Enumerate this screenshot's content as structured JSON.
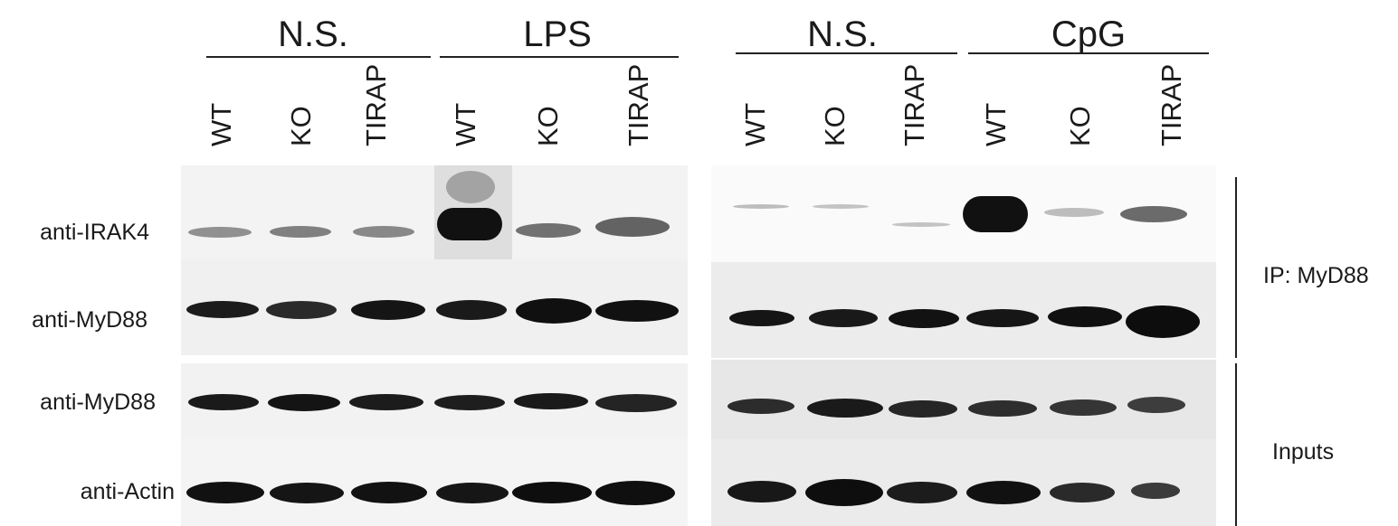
{
  "blot": {
    "groups": [
      "N.S.",
      "LPS",
      "N.S.",
      "CpG"
    ],
    "lanes": [
      "WT",
      "KO",
      "TIRAP",
      "WT",
      "KO",
      "TIRAP",
      "WT",
      "KO",
      "TIRAP",
      "WT",
      "KO",
      "TIRAP"
    ],
    "row_labels": [
      "anti-IRAK4",
      "anti-MyD88",
      "anti-MyD88",
      "anti-Actin"
    ],
    "side_labels": [
      "IP: MyD88",
      "Inputs"
    ]
  }
}
